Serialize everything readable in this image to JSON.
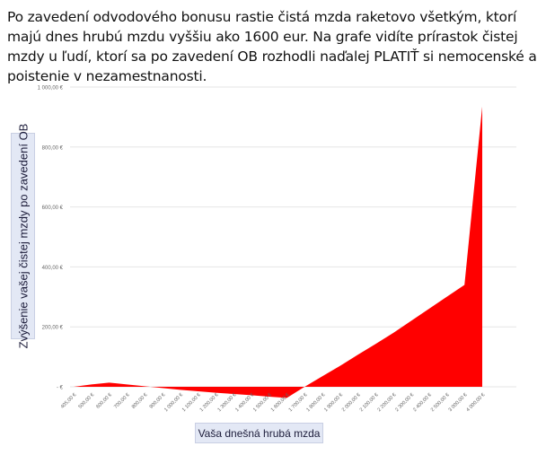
{
  "intro_text": "Po zavedení odvodového bonusu rastie čistá mzda raketovo všetkým, ktorí majú dnes hrubú mzdu vyššiu ako 1600 eur. Na grafe vidíte prírastok čistej mzdy u ľudí, ktorí sa po zavedení OB rozhodli naďalej PLATIŤ si nemocenské a poistenie v nezamestnanosti.",
  "colors": {
    "area": "#ff0000",
    "grid": "#e6e6e6",
    "axis_text": "#666666",
    "label_box": "#e3e8f5"
  },
  "chart_data": {
    "type": "area",
    "title": "",
    "xlabel": "Vaša dnešná hrubá mzda",
    "ylabel": "Zvýšenie vašej čistej mzdy po zavedení OB",
    "categories": [
      "405,00 €",
      "500,00 €",
      "600,00 €",
      "700,00 €",
      "800,00 €",
      "900,00 €",
      "1 000,00 €",
      "1 100,00 €",
      "1 200,00 €",
      "1 300,00 €",
      "1 400,00 €",
      "1 500,00 €",
      "1 600,00 €",
      "1 700,00 €",
      "1 800,00 €",
      "1 900,00 €",
      "2 000,00 €",
      "2 100,00 €",
      "2 200,00 €",
      "2 300,00 €",
      "2 400,00 €",
      "2 500,00 €",
      "3 000,00 €",
      "4 000,00 €"
    ],
    "series": [
      {
        "values": [
          0,
          8,
          14,
          8,
          2,
          -4,
          -10,
          -15,
          -20,
          -24,
          -28,
          -33,
          -37,
          0,
          35,
          70,
          107,
          143,
          180,
          220,
          260,
          300,
          340,
          935
        ]
      }
    ],
    "ylim": [
      0,
      1000
    ],
    "yticks": [
      0,
      200,
      400,
      600,
      800,
      1000
    ],
    "ytick_labels": [
      "- €",
      "200,00 €",
      "400,00 €",
      "600,00 €",
      "800,00 €",
      "1 000,00 €"
    ],
    "grid": true,
    "legend": "none"
  }
}
